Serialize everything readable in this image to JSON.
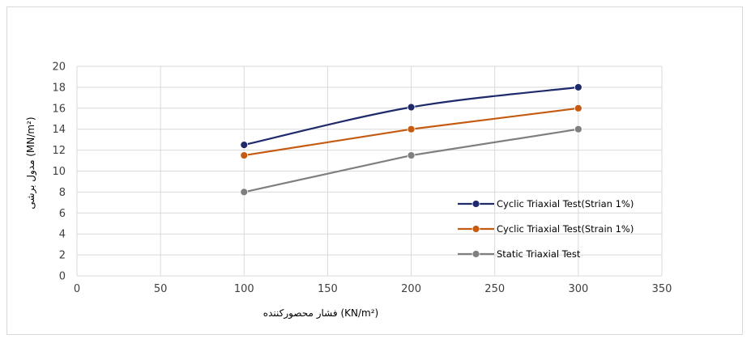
{
  "chart_data": {
    "type": "line",
    "title": "",
    "xlabel": "فشار محصورکننده (KN/m²)",
    "ylabel": "مدول برشی (MN/m²)",
    "xlim": [
      0,
      350
    ],
    "ylim": [
      0,
      20
    ],
    "x_ticks": [
      0,
      50,
      100,
      150,
      200,
      250,
      300,
      350
    ],
    "y_ticks": [
      0,
      2,
      4,
      6,
      8,
      10,
      12,
      14,
      16,
      18,
      20
    ],
    "grid": true,
    "legend_position": "right",
    "series": [
      {
        "name": "Cyclic Triaxial Test(Strian 1%)",
        "color": "#1f2a6b",
        "x": [
          100,
          200,
          300
        ],
        "y": [
          12.5,
          16.1,
          18
        ]
      },
      {
        "name": "Cyclic Triaxial Test(Strain 1%)",
        "color": "#c55a11",
        "x": [
          100,
          200,
          300
        ],
        "y": [
          11.5,
          14,
          16
        ]
      },
      {
        "name": "Static Triaxial Test",
        "color": "#7f7f7f",
        "x": [
          100,
          200,
          300
        ],
        "y": [
          8,
          11.5,
          14
        ]
      }
    ]
  }
}
